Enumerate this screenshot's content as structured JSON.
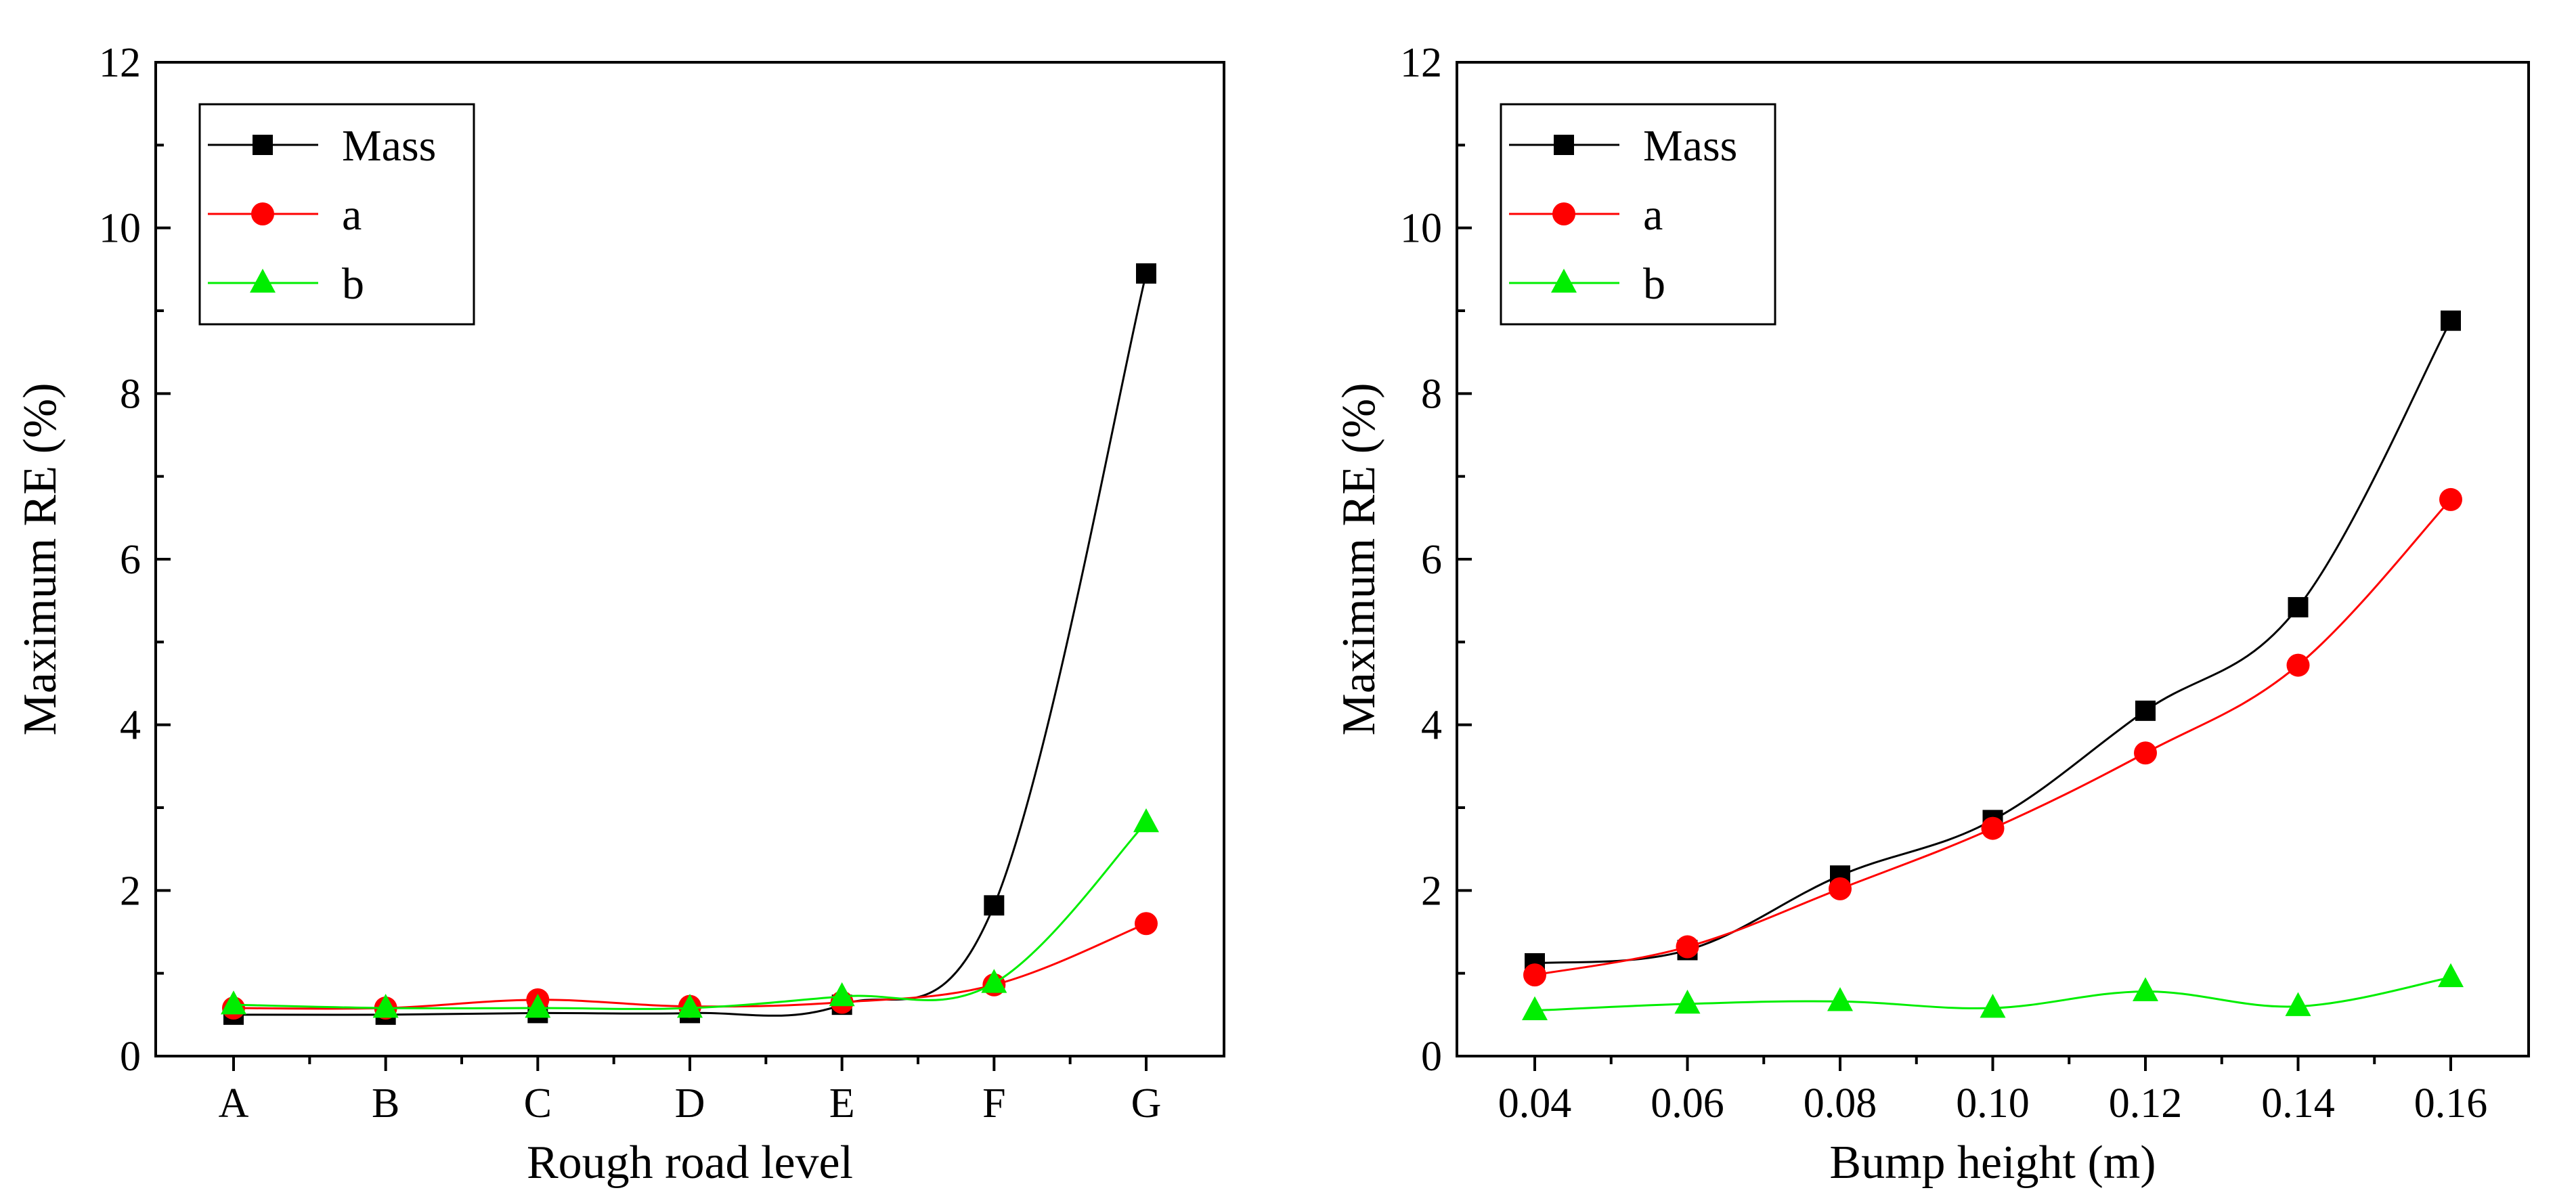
{
  "chart_data": [
    {
      "type": "line",
      "title": "",
      "xlabel": "Rough road level",
      "ylabel": "Maximum RE (%)",
      "categories": [
        "A",
        "B",
        "C",
        "D",
        "E",
        "F",
        "G"
      ],
      "ylim": [
        0,
        12
      ],
      "yticks": [
        "0",
        "2",
        "4",
        "6",
        "8",
        "10",
        "12"
      ],
      "legend_position": "top-left",
      "grid": false,
      "series": [
        {
          "name": "Mass",
          "color": "#000000",
          "marker": "square",
          "values": [
            0.5,
            0.5,
            0.52,
            0.52,
            0.62,
            1.82,
            9.45
          ]
        },
        {
          "name": "a",
          "color": "#ff0000",
          "marker": "circle",
          "values": [
            0.58,
            0.58,
            0.68,
            0.6,
            0.65,
            0.86,
            1.6
          ]
        },
        {
          "name": "b",
          "color": "#00ee00",
          "marker": "triangle",
          "values": [
            0.62,
            0.58,
            0.58,
            0.58,
            0.72,
            0.88,
            2.82
          ]
        }
      ]
    },
    {
      "type": "line",
      "title": "",
      "xlabel": "Bump height (m)",
      "ylabel": "Maximum RE (%)",
      "categories": [
        "0.04",
        "0.06",
        "0.08",
        "0.10",
        "0.12",
        "0.14",
        "0.16"
      ],
      "ylim": [
        0,
        12
      ],
      "yticks": [
        "0",
        "2",
        "4",
        "6",
        "8",
        "10",
        "12"
      ],
      "legend_position": "top-left",
      "grid": false,
      "series": [
        {
          "name": "Mass",
          "color": "#000000",
          "marker": "square",
          "values": [
            1.12,
            1.28,
            2.18,
            2.85,
            4.17,
            5.42,
            8.88
          ]
        },
        {
          "name": "a",
          "color": "#ff0000",
          "marker": "circle",
          "values": [
            0.98,
            1.32,
            2.02,
            2.75,
            3.66,
            4.72,
            6.72
          ]
        },
        {
          "name": "b",
          "color": "#00ee00",
          "marker": "triangle",
          "values": [
            0.55,
            0.63,
            0.66,
            0.58,
            0.78,
            0.6,
            0.95
          ]
        }
      ]
    }
  ]
}
